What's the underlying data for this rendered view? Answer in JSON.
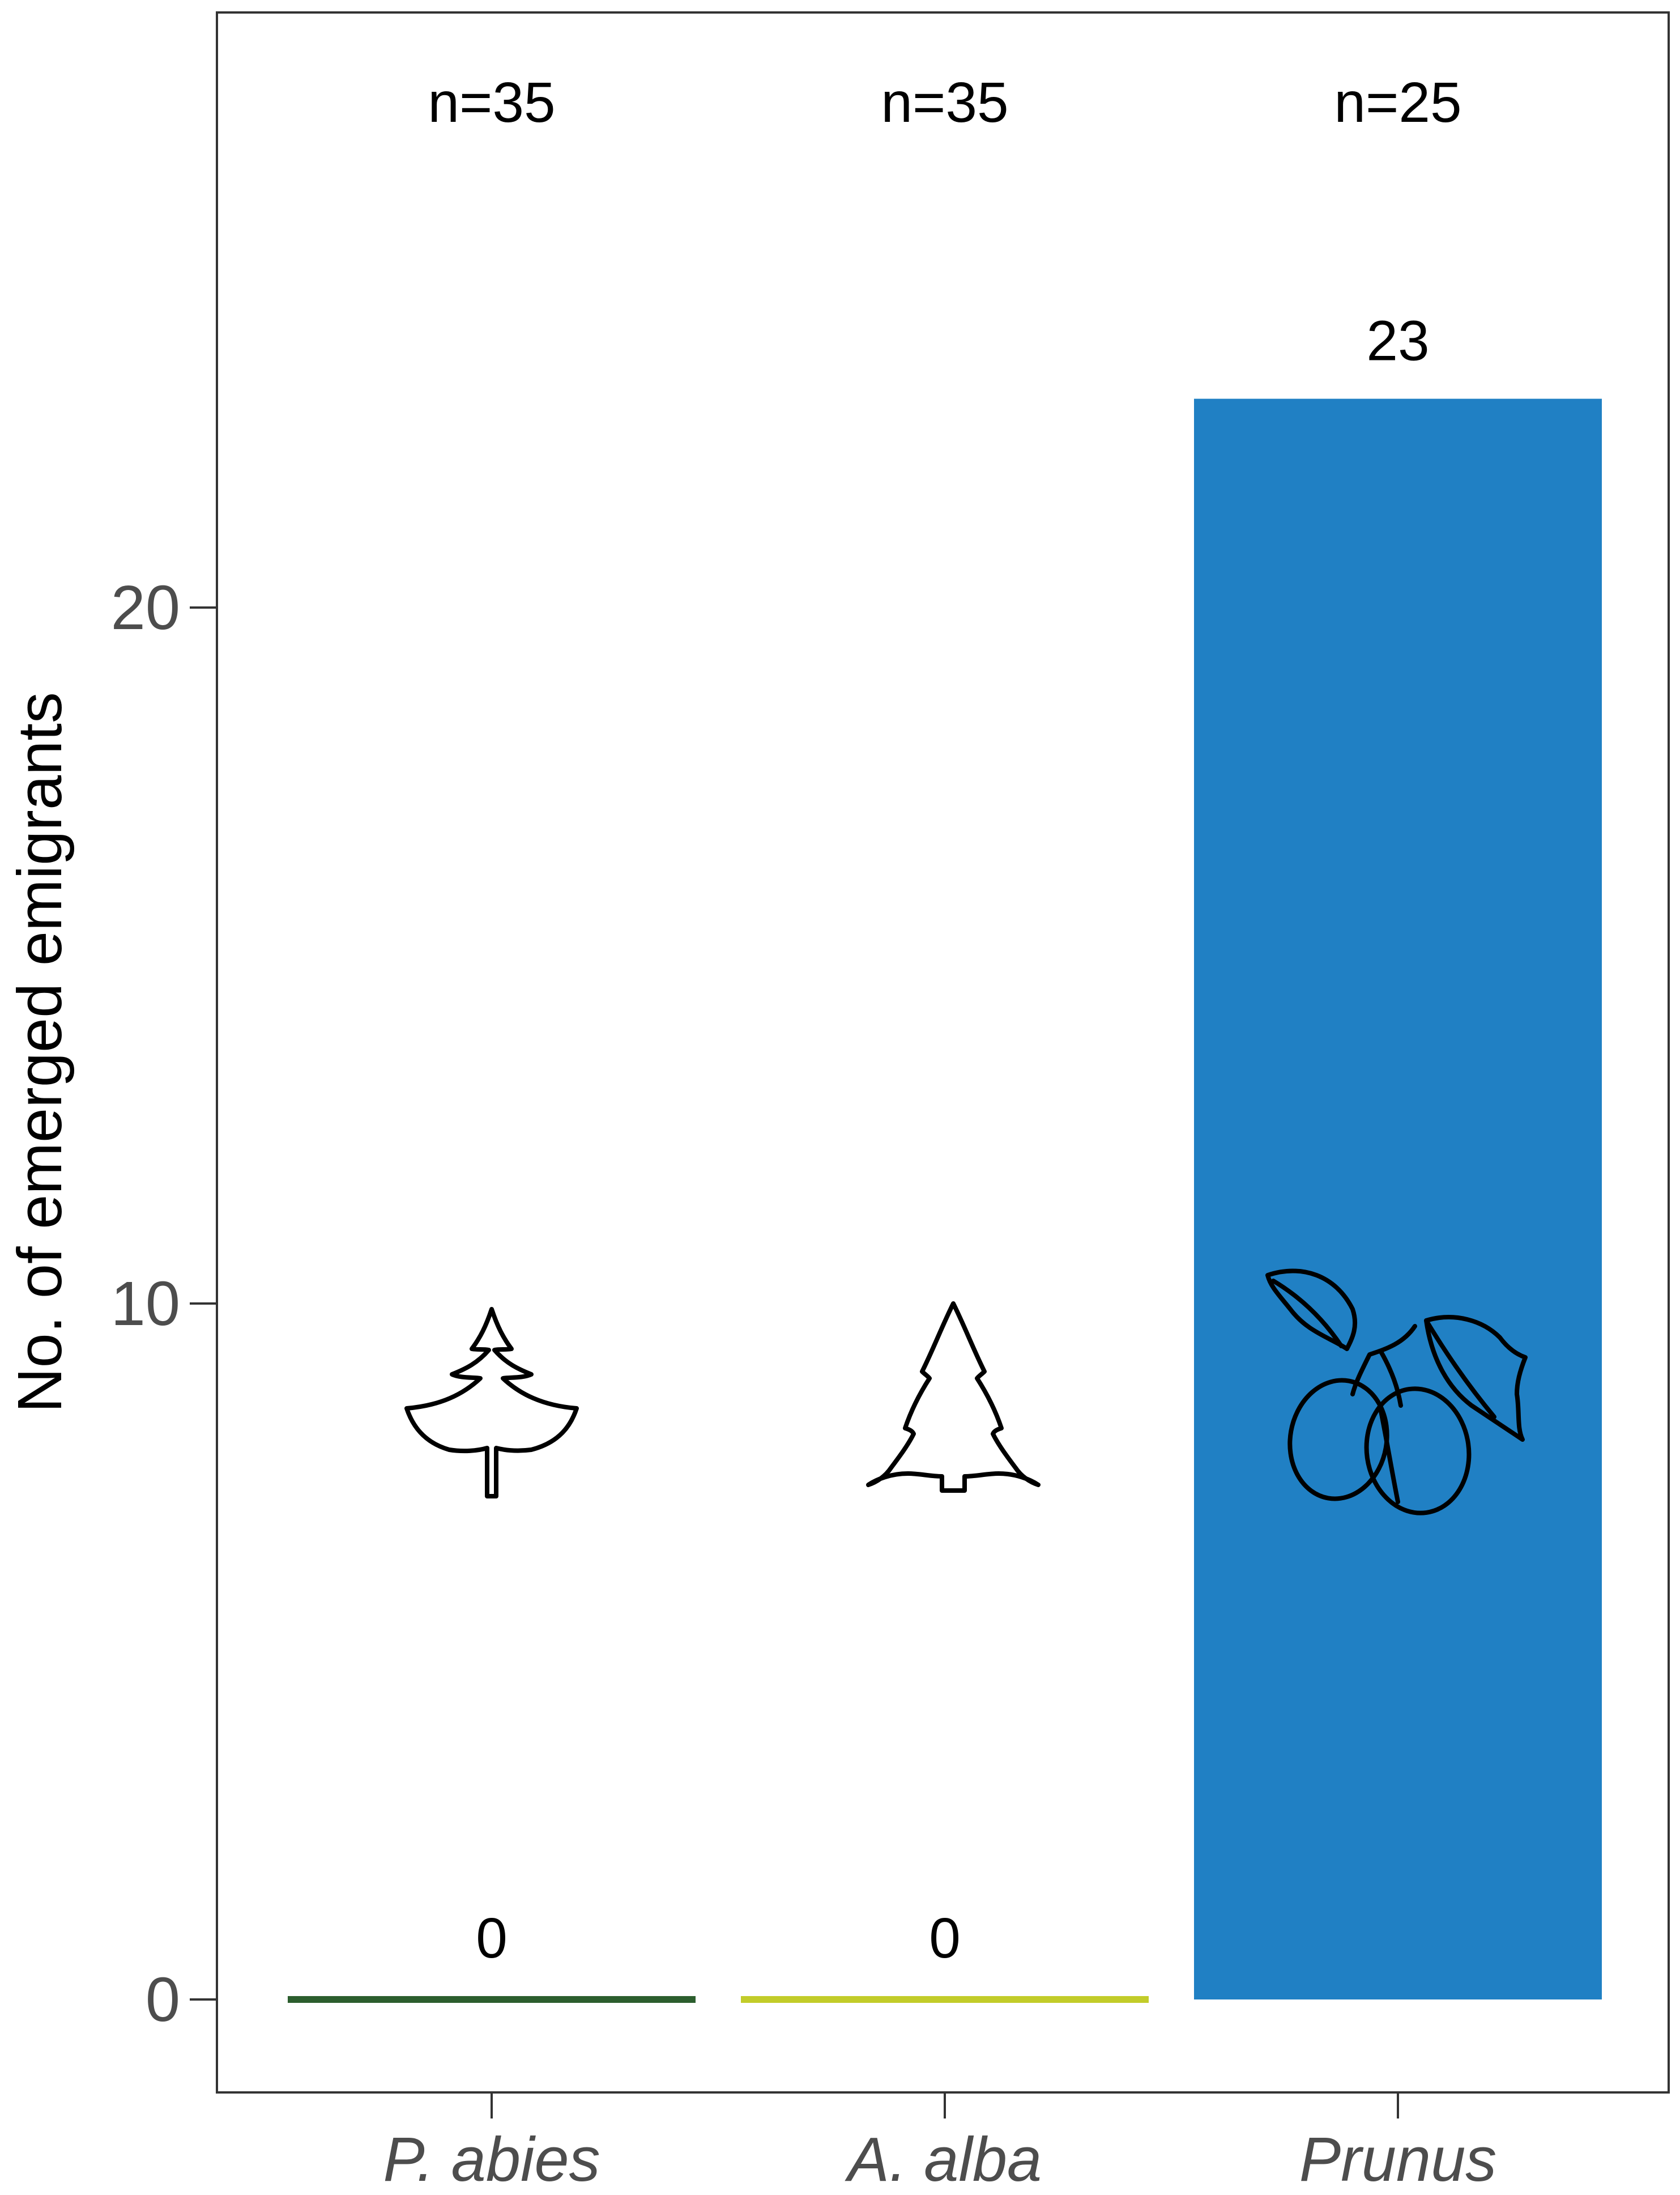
{
  "chart_data": {
    "type": "bar",
    "categories": [
      "P. abies",
      "A. alba",
      "Prunus"
    ],
    "values": [
      0,
      0,
      23
    ],
    "sample_sizes": [
      "n=35",
      "n=35",
      "n=25"
    ],
    "value_labels": [
      "0",
      "0",
      "23"
    ],
    "bar_colors": [
      "#2c5e2e",
      "#c2cc2a",
      "#2080c4"
    ],
    "ylabel": "No. of emerged emigrants",
    "xlabel": "",
    "ylim": [
      -1.3,
      28.8
    ],
    "yticks": [
      0,
      10,
      20
    ],
    "ytick_labels": [
      "0",
      "10",
      "20"
    ],
    "grid": false,
    "category_icons": [
      "spruce-tree-icon",
      "fir-tree-icon",
      "plum-fruit-icon"
    ]
  }
}
